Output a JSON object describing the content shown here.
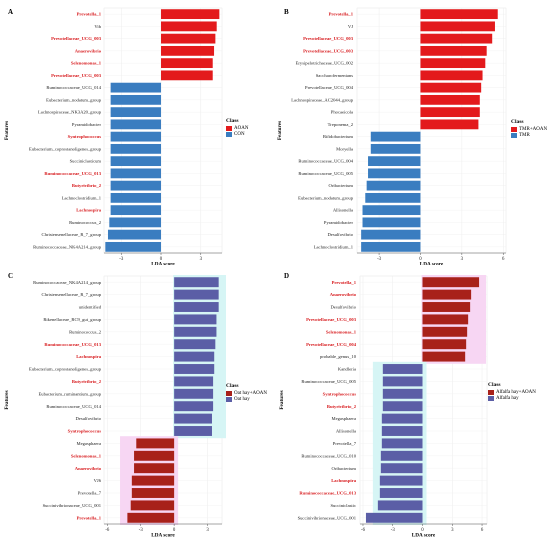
{
  "colors": {
    "red": "#e31a1c",
    "blue": "#3a7dc0",
    "dark_red": "#a8211a",
    "purple": "#5b5ea6",
    "highlight_pink": "#f7d6f3",
    "highlight_cyan": "#d6f5f5",
    "red_text": "#d7191c"
  },
  "chart_data": [
    {
      "panel": "A",
      "type": "bar",
      "orientation": "horizontal",
      "xlabel": "LDA score",
      "ylabel": "Features",
      "xticks": [
        -3,
        0,
        3
      ],
      "xlim": [
        -4.3,
        4.6
      ],
      "legend": {
        "title": "Class",
        "position": "right",
        "entries": [
          {
            "name": "AOAN",
            "color": "#e31a1c"
          },
          {
            "name": "CON",
            "color": "#3a7dc0"
          }
        ]
      },
      "categories": [
        "Prevotella_1",
        "Vib",
        "Prevotellaceae_UCG_003",
        "Anaerovibrio",
        "Selenomonas_1",
        "Prevotellaceae_UCG_003",
        "Ruminococcaceae_UCG_014",
        "Eubacterium_nodatum_group",
        "Lachnospiraceae_NK3A20_group",
        "Pyramidobacter",
        "Syntrophococcus",
        "Eubacterium_coprostanoligenes_group",
        "Succiniclasticum",
        "Ruminococcaceae_UCG_013",
        "Butyrivibrio_2",
        "Lachnoclostridium_1",
        "Lachnospira",
        "Ruminococcus_2",
        "Christensenellaceae_R_7_group",
        "Ruminococcaceae_NK4A214_group"
      ],
      "values": [
        4.4,
        4.2,
        4.1,
        4.0,
        3.9,
        3.9,
        -3.8,
        -3.8,
        -3.8,
        -3.8,
        -3.8,
        -3.8,
        -3.8,
        -3.8,
        -3.8,
        -3.8,
        -3.8,
        -3.9,
        -4.0,
        -4.2
      ],
      "groups": [
        "AOAN",
        "AOAN",
        "AOAN",
        "AOAN",
        "AOAN",
        "AOAN",
        "CON",
        "CON",
        "CON",
        "CON",
        "CON",
        "CON",
        "CON",
        "CON",
        "CON",
        "CON",
        "CON",
        "CON",
        "CON",
        "CON"
      ],
      "red_labels": [
        0,
        2,
        3,
        4,
        5,
        10,
        13,
        14,
        16
      ]
    },
    {
      "panel": "B",
      "type": "bar",
      "orientation": "horizontal",
      "xlabel": "LDA score",
      "ylabel": "Features",
      "xticks": [
        -3,
        0,
        3,
        6
      ],
      "xlim": [
        -4.6,
        6.2
      ],
      "legend": {
        "title": "Class",
        "position": "right",
        "entries": [
          {
            "name": "TMR+AOAN",
            "color": "#e31a1c"
          },
          {
            "name": "TMR",
            "color": "#3a7dc0"
          }
        ]
      },
      "categories": [
        "Prevotella_1",
        "VJ",
        "Prevotellaceae_UCG_003",
        "Prevotellaceae_UCG_003",
        "Erysipelotrichaceae_UCG_002",
        "Saccharofermentans",
        "Prevotellaceae_UCG_004",
        "Lachnospiraceae_AC2044_group",
        "Phocaeicola",
        "Treponema_2",
        "Bifidobacterium",
        "Moryella",
        "Ruminococcaceae_UCG_004",
        "Ruminococcaceae_UCG_005",
        "Oribacterium",
        "Eubacterium_nodatum_group",
        "Allisonella",
        "Pyramidobacter",
        "Desulfovibrio",
        "Lachnoclostridium_1"
      ],
      "values": [
        5.6,
        5.4,
        5.2,
        4.8,
        4.7,
        4.5,
        4.4,
        4.3,
        4.3,
        4.2,
        -3.6,
        -3.6,
        -3.8,
        -3.8,
        -3.9,
        -4.0,
        -4.2,
        -4.2,
        -4.3,
        -4.3
      ],
      "groups": [
        "TMR+AOAN",
        "TMR+AOAN",
        "TMR+AOAN",
        "TMR+AOAN",
        "TMR+AOAN",
        "TMR+AOAN",
        "TMR+AOAN",
        "TMR+AOAN",
        "TMR+AOAN",
        "TMR+AOAN",
        "TMR",
        "TMR",
        "TMR",
        "TMR",
        "TMR",
        "TMR",
        "TMR",
        "TMR",
        "TMR",
        "TMR"
      ],
      "red_labels": [
        0,
        2,
        3
      ]
    },
    {
      "panel": "C",
      "type": "bar",
      "orientation": "horizontal",
      "xlabel": "LDA score",
      "ylabel": "Features",
      "xticks": [
        -6,
        -3,
        0,
        3
      ],
      "xlim": [
        -6.3,
        4.3
      ],
      "legend": {
        "title": "Class",
        "position": "right",
        "entries": [
          {
            "name": "Oat hay+AOAN",
            "color": "#a8211a"
          },
          {
            "name": "Oat hay",
            "color": "#5b5ea6"
          }
        ]
      },
      "categories": [
        "Ruminococcaceae_NK4A214_group",
        "Christensenellaceae_R_7_group",
        "unidentified",
        "Rikenellaceae_RC9_gut_group",
        "Ruminococcus_2",
        "Ruminococcaceae_UCG_013",
        "Lachnospira",
        "Eubacterium_coprostanoligenes_group",
        "Butyrivibrio_2",
        "Eubacterium_ruminantium_group",
        "Ruminococcaceae_UCG_014",
        "Desulfovibrio",
        "Syntrophococcus",
        "Megasphaera",
        "Selenomonas_1",
        "Anaerovibrio",
        "VJ6",
        "Prevotella_7",
        "Succinivibrionaceae_UCG_001",
        "Prevotella_1"
      ],
      "values": [
        4.0,
        4.0,
        4.0,
        3.8,
        3.8,
        3.7,
        3.6,
        3.6,
        3.5,
        3.5,
        3.5,
        3.4,
        3.4,
        -3.4,
        -3.6,
        -3.6,
        -3.8,
        -3.8,
        -3.9,
        -4.2
      ],
      "groups": [
        "Oat hay",
        "Oat hay",
        "Oat hay",
        "Oat hay",
        "Oat hay",
        "Oat hay",
        "Oat hay",
        "Oat hay",
        "Oat hay",
        "Oat hay",
        "Oat hay",
        "Oat hay",
        "Oat hay",
        "Oat hay+AOAN",
        "Oat hay+AOAN",
        "Oat hay+AOAN",
        "Oat hay+AOAN",
        "Oat hay+AOAN",
        "Oat hay+AOAN",
        "Oat hay+AOAN"
      ],
      "red_labels": [
        5,
        6,
        8,
        12,
        14,
        15,
        19
      ]
    },
    {
      "panel": "D",
      "type": "bar",
      "orientation": "horizontal",
      "xlabel": "LDA score",
      "ylabel": "Features",
      "xticks": [
        -6,
        -3,
        0,
        3,
        6
      ],
      "xlim": [
        -6.3,
        6.5
      ],
      "legend": {
        "title": "Class",
        "position": "right",
        "entries": [
          {
            "name": "Alfalfa hay+AOAN",
            "color": "#a8211a"
          },
          {
            "name": "Alfalfa hay",
            "color": "#5b5ea6"
          }
        ]
      },
      "categories": [
        "Prevotella_1",
        "Anaerovibrio",
        "Desulfovibrio",
        "Prevotellaceae_UCG_003",
        "Selenomonas_1",
        "Prevotellaceae_UCG_004",
        "probable_genus_10",
        "Kandleria",
        "Ruminococcaceae_UCG_005",
        "Syntrophococcus",
        "Butyrivibrio_2",
        "Megasphaera",
        "Allisonella",
        "Prevotella_7",
        "Ruminococcaceae_UCG_010",
        "Oribacterium",
        "Lachnospira",
        "Ruminococcaceae_UCG_013",
        "Succiniclastic",
        "Succinivibrionaceae_UCG_001"
      ],
      "values": [
        5.7,
        4.9,
        4.8,
        4.6,
        4.5,
        4.4,
        4.3,
        -4.0,
        -4.0,
        -4.0,
        -4.0,
        -4.1,
        -4.1,
        -4.1,
        -4.2,
        -4.2,
        -4.3,
        -4.3,
        -4.5,
        -5.7
      ],
      "groups": [
        "Alfalfa hay+AOAN",
        "Alfalfa hay+AOAN",
        "Alfalfa hay+AOAN",
        "Alfalfa hay+AOAN",
        "Alfalfa hay+AOAN",
        "Alfalfa hay+AOAN",
        "Alfalfa hay+AOAN",
        "Alfalfa hay",
        "Alfalfa hay",
        "Alfalfa hay",
        "Alfalfa hay",
        "Alfalfa hay",
        "Alfalfa hay",
        "Alfalfa hay",
        "Alfalfa hay",
        "Alfalfa hay",
        "Alfalfa hay",
        "Alfalfa hay",
        "Alfalfa hay",
        "Alfalfa hay"
      ],
      "red_labels": [
        0,
        1,
        3,
        4,
        5,
        9,
        10,
        16,
        17
      ]
    }
  ]
}
